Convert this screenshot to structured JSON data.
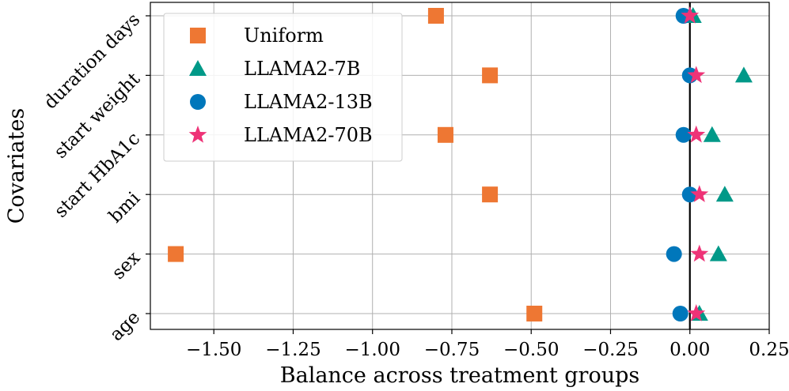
{
  "chart_data": {
    "type": "scatter",
    "title": "",
    "xlabel": "Balance across treatment groups",
    "ylabel": "Covariates",
    "xlim": [
      -1.7,
      0.25
    ],
    "xticks": [
      -1.5,
      -1.25,
      -1.0,
      -0.75,
      -0.5,
      -0.25,
      0.0,
      0.25
    ],
    "xtick_labels": [
      "−1.50",
      "−1.25",
      "−1.00",
      "−0.75",
      "−0.50",
      "−0.25",
      "0.00",
      "0.25"
    ],
    "categories": [
      "age",
      "sex",
      "bmi",
      "start HbA1c",
      "start weight",
      "duration days"
    ],
    "grid": true,
    "legend_position": "upper-left",
    "reference_line_x": 0.0,
    "series": [
      {
        "name": "Uniform",
        "marker": "square",
        "color": "#ee7733",
        "values": [
          -0.49,
          -1.62,
          -0.63,
          -0.77,
          -0.63,
          -0.8
        ]
      },
      {
        "name": "LLAMA2-7B",
        "marker": "triangle",
        "color": "#009988",
        "values": [
          0.03,
          0.09,
          0.11,
          0.07,
          0.17,
          0.01
        ]
      },
      {
        "name": "LLAMA2-13B",
        "marker": "circle",
        "color": "#0077bb",
        "values": [
          -0.03,
          -0.05,
          0.0,
          -0.02,
          0.0,
          -0.02
        ]
      },
      {
        "name": "LLAMA2-70B",
        "marker": "star",
        "color": "#ee3377",
        "values": [
          0.02,
          0.03,
          0.03,
          0.02,
          0.02,
          0.0
        ]
      }
    ]
  }
}
